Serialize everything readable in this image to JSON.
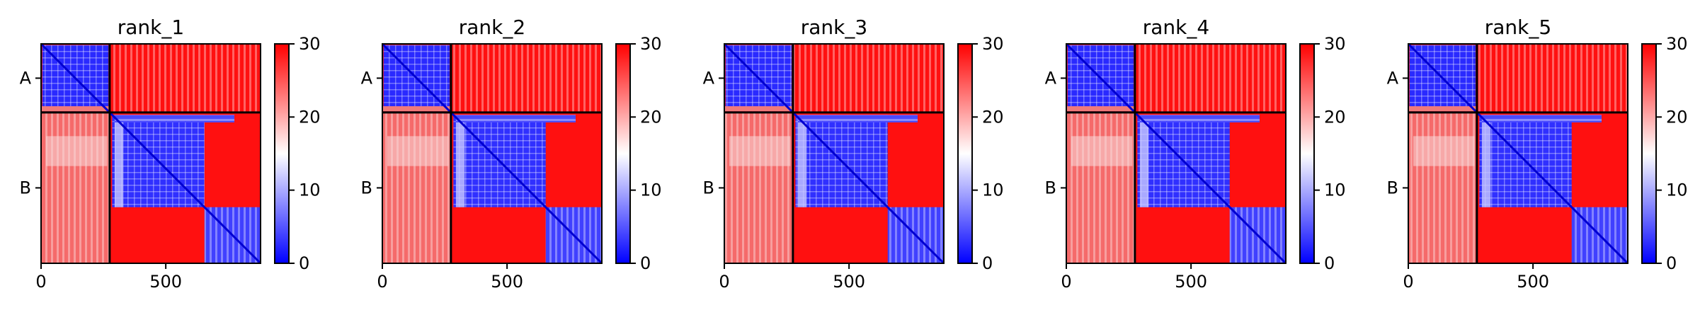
{
  "figure": {
    "panels": [
      {
        "title": "rank_1"
      },
      {
        "title": "rank_2"
      },
      {
        "title": "rank_3"
      },
      {
        "title": "rank_4"
      },
      {
        "title": "rank_5"
      }
    ]
  },
  "chart_data": [
    {
      "type": "heatmap",
      "title": "rank_1",
      "x_range": [
        0,
        880
      ],
      "y_range": [
        0,
        880
      ],
      "x_ticks": [
        0,
        500
      ],
      "x_tick_labels": [
        "0",
        "500"
      ],
      "y_tick_labels": [
        "A",
        "B"
      ],
      "chain_boundary": 275,
      "chain_lengths": {
        "A": 275,
        "B": 605
      },
      "colorbar": {
        "min": 0,
        "max": 30,
        "ticks": [
          0,
          10,
          20,
          30
        ],
        "tick_labels": [
          "0",
          "10",
          "20",
          "30"
        ],
        "cmap": "bwr"
      },
      "domains_B": [
        [
          275,
          655
        ],
        [
          655,
          880
        ]
      ]
    },
    {
      "type": "heatmap",
      "title": "rank_2",
      "x_range": [
        0,
        880
      ],
      "y_range": [
        0,
        880
      ],
      "x_ticks": [
        0,
        500
      ],
      "x_tick_labels": [
        "0",
        "500"
      ],
      "y_tick_labels": [
        "A",
        "B"
      ],
      "chain_boundary": 275,
      "chain_lengths": {
        "A": 275,
        "B": 605
      },
      "colorbar": {
        "min": 0,
        "max": 30,
        "ticks": [
          0,
          10,
          20,
          30
        ],
        "tick_labels": [
          "0",
          "10",
          "20",
          "30"
        ],
        "cmap": "bwr"
      },
      "domains_B": [
        [
          275,
          655
        ],
        [
          655,
          880
        ]
      ]
    },
    {
      "type": "heatmap",
      "title": "rank_3",
      "x_range": [
        0,
        880
      ],
      "y_range": [
        0,
        880
      ],
      "x_ticks": [
        0,
        500
      ],
      "x_tick_labels": [
        "0",
        "500"
      ],
      "y_tick_labels": [
        "A",
        "B"
      ],
      "chain_boundary": 275,
      "chain_lengths": {
        "A": 275,
        "B": 605
      },
      "colorbar": {
        "min": 0,
        "max": 30,
        "ticks": [
          0,
          10,
          20,
          30
        ],
        "tick_labels": [
          "0",
          "10",
          "20",
          "30"
        ],
        "cmap": "bwr"
      },
      "domains_B": [
        [
          275,
          655
        ],
        [
          655,
          880
        ]
      ]
    },
    {
      "type": "heatmap",
      "title": "rank_4",
      "x_range": [
        0,
        880
      ],
      "y_range": [
        0,
        880
      ],
      "x_ticks": [
        0,
        500
      ],
      "x_tick_labels": [
        "0",
        "500"
      ],
      "y_tick_labels": [
        "A",
        "B"
      ],
      "chain_boundary": 275,
      "chain_lengths": {
        "A": 275,
        "B": 605
      },
      "colorbar": {
        "min": 0,
        "max": 30,
        "ticks": [
          0,
          10,
          20,
          30
        ],
        "tick_labels": [
          "0",
          "10",
          "20",
          "30"
        ],
        "cmap": "bwr"
      },
      "domains_B": [
        [
          275,
          655
        ],
        [
          655,
          880
        ]
      ]
    },
    {
      "type": "heatmap",
      "title": "rank_5",
      "x_range": [
        0,
        880
      ],
      "y_range": [
        0,
        880
      ],
      "x_ticks": [
        0,
        500
      ],
      "x_tick_labels": [
        "0",
        "500"
      ],
      "y_tick_labels": [
        "A",
        "B"
      ],
      "chain_boundary": 275,
      "chain_lengths": {
        "A": 275,
        "B": 605
      },
      "colorbar": {
        "min": 0,
        "max": 30,
        "ticks": [
          0,
          10,
          20,
          30
        ],
        "tick_labels": [
          "0",
          "10",
          "20",
          "30"
        ],
        "cmap": "bwr"
      },
      "domains_B": [
        [
          275,
          655
        ],
        [
          655,
          880
        ]
      ]
    }
  ]
}
